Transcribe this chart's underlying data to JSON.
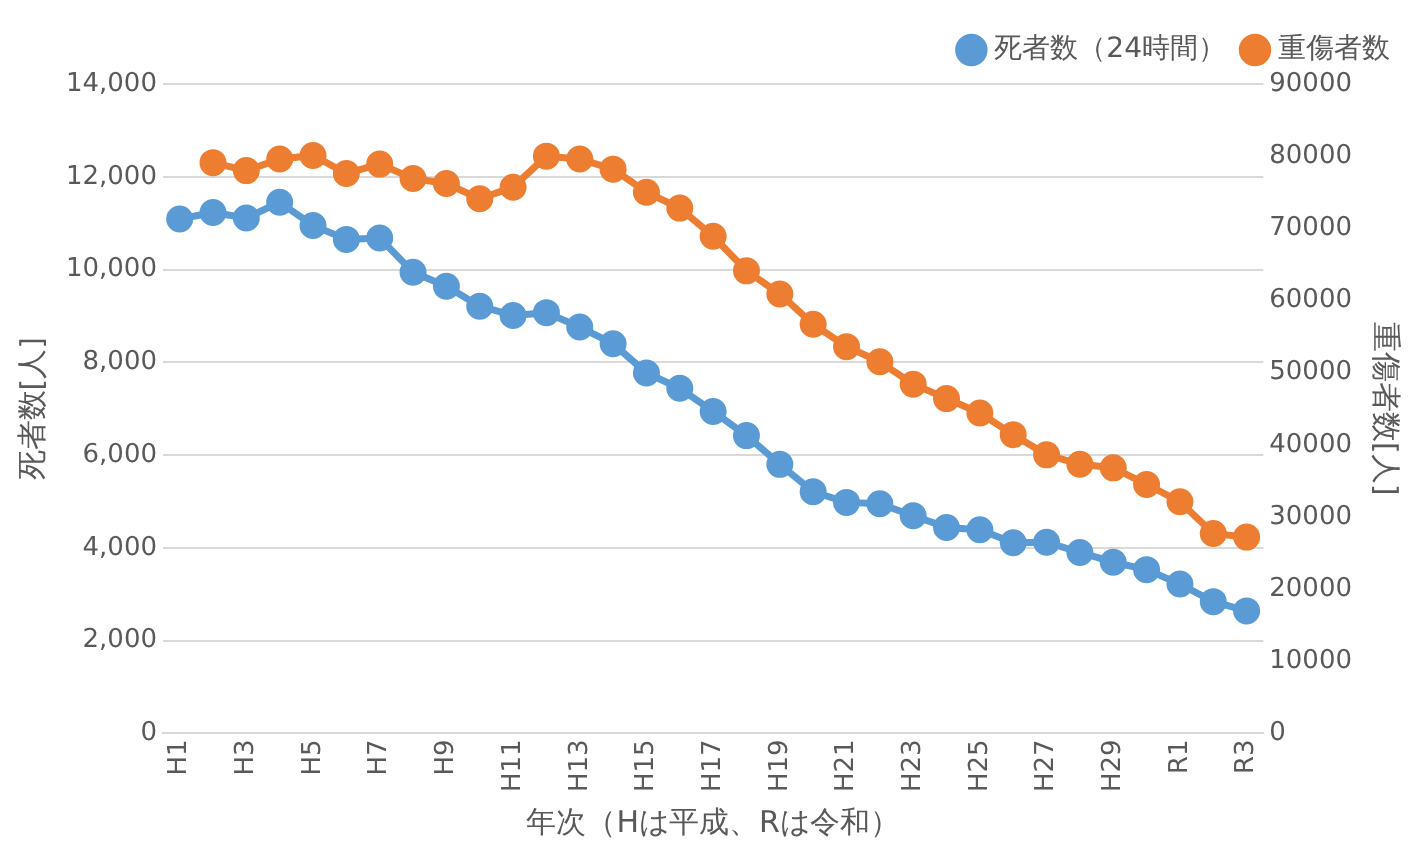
{
  "chart_data": {
    "type": "line",
    "xlabel": "年次（Hは平成、Rは令和）",
    "ylabel": "死者数[人]",
    "y2label": "重傷者数[人]",
    "categories": [
      "H1",
      null,
      "H3",
      null,
      "H5",
      null,
      "H7",
      null,
      "H9",
      null,
      "H11",
      null,
      "H13",
      null,
      "H15",
      null,
      "H17",
      null,
      "H19",
      null,
      "H21",
      null,
      "H23",
      null,
      "H25",
      null,
      "H27",
      null,
      "H29",
      null,
      "R1",
      null,
      "R3"
    ],
    "series": [
      {
        "name": "死者数（24時間）",
        "color": "#5b9bd5",
        "values": [
          11090,
          11230,
          11110,
          11450,
          10950,
          10650,
          10680,
          9940,
          9640,
          9210,
          9010,
          9070,
          8760,
          8400,
          7770,
          7440,
          6940,
          6420,
          5800,
          5210,
          4980,
          4950,
          4690,
          4440,
          4390,
          4110,
          4120,
          3900,
          3690,
          3530,
          3220,
          2840,
          2640
        ]
      },
      {
        "name": "重傷者数",
        "color": "#ed7d31",
        "axis": "y2",
        "values": [
          null,
          79100,
          78000,
          79600,
          80100,
          77600,
          78900,
          76900,
          76200,
          74100,
          75700,
          80000,
          79600,
          78200,
          75000,
          72800,
          68900,
          64100,
          60900,
          56700,
          53600,
          51500,
          48400,
          46400,
          44400,
          41400,
          38600,
          37300,
          36800,
          34500,
          32100,
          27700,
          27200
        ]
      }
    ],
    "ylim": [
      0,
      14000
    ],
    "yticks": [
      {
        "value": 0,
        "label": "0"
      },
      {
        "value": 2000,
        "label": "2,000"
      },
      {
        "value": 4000,
        "label": "4,000"
      },
      {
        "value": 6000,
        "label": "6,000"
      },
      {
        "value": 8000,
        "label": "8,000"
      },
      {
        "value": 10000,
        "label": "10,000"
      },
      {
        "value": 12000,
        "label": "12,000"
      },
      {
        "value": 14000,
        "label": "14,000"
      }
    ],
    "y2lim": [
      0,
      90000
    ],
    "y2ticks": [
      0,
      10000,
      20000,
      30000,
      40000,
      50000,
      60000,
      70000,
      80000,
      90000
    ],
    "grid": "y",
    "legend": "top right",
    "marker": "circle",
    "line_style": "solid"
  }
}
